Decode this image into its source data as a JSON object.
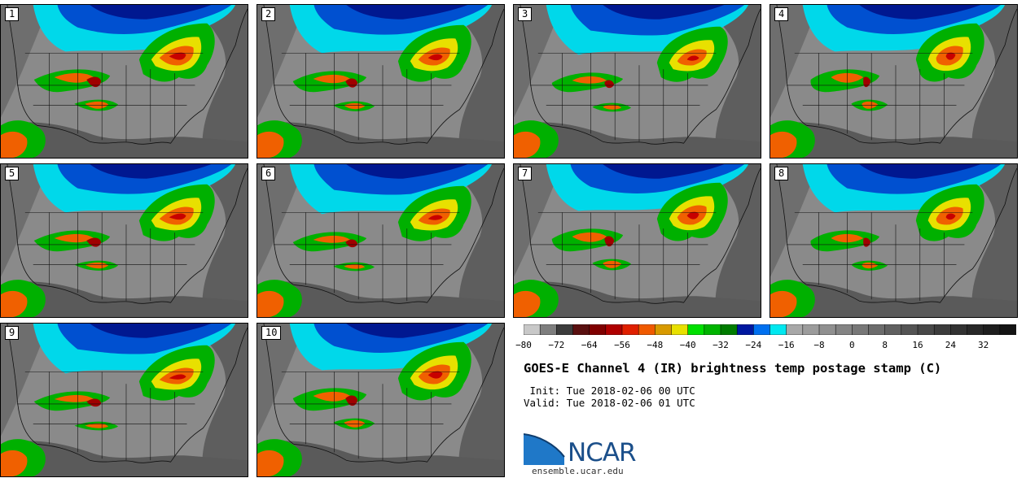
{
  "panels": [
    {
      "label": "1"
    },
    {
      "label": "2"
    },
    {
      "label": "3"
    },
    {
      "label": "4"
    },
    {
      "label": "5"
    },
    {
      "label": "6"
    },
    {
      "label": "7"
    },
    {
      "label": "8"
    },
    {
      "label": "9"
    },
    {
      "label": "10"
    }
  ],
  "colorbar": {
    "min": -80,
    "max": 40,
    "step": 4,
    "tick_labels": [
      "−80",
      "−72",
      "−64",
      "−56",
      "−48",
      "−40",
      "−32",
      "−24",
      "−16",
      "−8",
      "0",
      "8",
      "16",
      "24",
      "32"
    ],
    "tick_values": [
      -80,
      -72,
      -64,
      -56,
      -48,
      -40,
      -32,
      -24,
      -16,
      -8,
      0,
      8,
      16,
      24,
      32
    ],
    "colors": [
      "#c8c8c8",
      "#7e7e7e",
      "#3c3c3c",
      "#5a1010",
      "#800000",
      "#b00000",
      "#e02000",
      "#f05a00",
      "#d89a00",
      "#e8e000",
      "#00e000",
      "#00b400",
      "#007c00",
      "#0018a0",
      "#0070f0",
      "#00e8f0",
      "#a8a8a8",
      "#9c9c9c",
      "#909090",
      "#848484",
      "#787878",
      "#6c6c6c",
      "#606060",
      "#545454",
      "#484848",
      "#3c3c3c",
      "#323232",
      "#282828",
      "#1e1e1e",
      "#141414"
    ]
  },
  "title": "GOES-E Channel 4 (IR) brightness temp postage stamp (C)",
  "init": " Init: Tue 2018-02-06 00 UTC",
  "valid": "Valid: Tue 2018-02-06 01 UTC",
  "logo": {
    "text": "NCAR",
    "url": "ensemble.ucar.edu"
  }
}
